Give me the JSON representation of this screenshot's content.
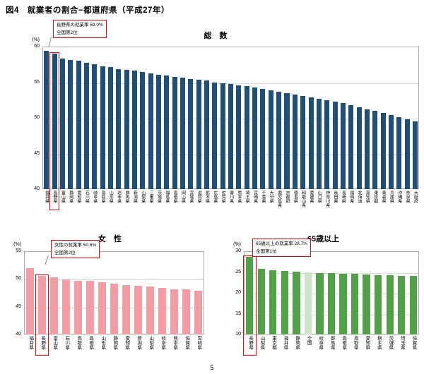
{
  "page": {
    "figure_title": "図4　就業者の割合−都道府県（平成27年）",
    "page_number": "5"
  },
  "colors": {
    "total_bar": "#1F4E79",
    "female_bar": "#F39CA4",
    "elderly_bar": "#52A047",
    "national_bar": "#CFE6C4",
    "highlight": "#FF0000",
    "grid": "#D9D9D9",
    "plot_border": "#A8A8A8"
  },
  "chart_data": [
    {
      "id": "total",
      "type": "bar",
      "title": "総　数",
      "unit": "(%)",
      "bar_color": "#1F4E79",
      "ylim": [
        40,
        60
      ],
      "yticks": [
        40,
        45,
        50,
        55,
        60
      ],
      "grid": true,
      "annotation": {
        "line1": "長野県の就業率  59.0%",
        "line2": "全国第2位"
      },
      "highlight_category": "長野県",
      "categories": [
        "福井県",
        "長野県",
        "富山県",
        "静岡県",
        "愛知県",
        "石川県",
        "岐阜県",
        "鳥取県",
        "山形県",
        "岩手県",
        "群馬県",
        "新潟県",
        "山梨県",
        "三重県",
        "茨城県",
        "福島県",
        "島根県",
        "岡山県",
        "宮城県",
        "滋賀県",
        "栃木県",
        "広島県",
        "佐賀県",
        "香川県",
        "熊本県",
        "埼玉県",
        "宮崎県",
        "千葉県",
        "大分県",
        "鹿児島県",
        "京都府",
        "徳島県",
        "和歌山県",
        "愛媛県",
        "山口県",
        "神奈川県",
        "秋田県",
        "長崎県",
        "福岡県",
        "北海道",
        "高知県",
        "東京都",
        "青森県",
        "兵庫県",
        "沖縄県",
        "奈良県",
        "大阪府"
      ],
      "values": [
        59.4,
        59.0,
        58.3,
        58.1,
        58.0,
        57.7,
        57.5,
        57.2,
        57.1,
        56.8,
        56.7,
        56.6,
        56.4,
        56.2,
        56.0,
        55.9,
        55.7,
        55.6,
        55.4,
        55.3,
        55.2,
        55.0,
        54.9,
        54.8,
        54.6,
        54.5,
        54.3,
        54.1,
        53.9,
        53.7,
        53.5,
        53.3,
        53.1,
        52.9,
        52.7,
        52.5,
        52.3,
        52.1,
        51.8,
        51.5,
        51.2,
        51.0,
        50.7,
        50.4,
        50.1,
        49.8,
        49.5
      ]
    },
    {
      "id": "female",
      "type": "bar",
      "title": "女　性",
      "unit": "(%)",
      "bar_color": "#F39CA4",
      "ylim": [
        40,
        55
      ],
      "yticks": [
        40,
        45,
        50,
        55
      ],
      "grid": true,
      "annotation": {
        "line1": "女性の就業率  50.6%",
        "line2": "全国第2位"
      },
      "highlight_category": "長野県",
      "categories": [
        "福井県",
        "長野県",
        "富山県",
        "石川県",
        "鳥取県",
        "島根県",
        "山形県",
        "静岡県",
        "愛知県",
        "新潟県",
        "山梨県",
        "岐阜県",
        "熊本県",
        "佐賀県",
        "宮崎県"
      ],
      "values": [
        51.9,
        50.6,
        50.3,
        49.9,
        49.7,
        49.6,
        49.4,
        49.2,
        48.9,
        48.8,
        48.6,
        48.4,
        48.2,
        48.1,
        47.9
      ]
    },
    {
      "id": "elderly",
      "type": "bar",
      "title": "65歳以上",
      "unit": "(%)",
      "bar_color": "#52A047",
      "national_category": "全国",
      "national_bar_color": "#CFE6C4",
      "ylim": [
        10,
        30
      ],
      "yticks": [
        10,
        15,
        20,
        25,
        30
      ],
      "grid": true,
      "annotation": {
        "line1": "65歳以上の就業率  28.7%",
        "line2": "全国第1位"
      },
      "highlight_category": "長野県",
      "categories": [
        "長野県",
        "山梨県",
        "東京都",
        "福井県",
        "静岡県",
        "全国",
        "岐阜県",
        "群馬県",
        "島根県",
        "鳥取県",
        "愛知県",
        "栃木県",
        "茨城県",
        "埼玉県",
        "佐賀県"
      ],
      "values": [
        28.7,
        25.8,
        25.5,
        25.3,
        25.1,
        24.9,
        24.8,
        24.7,
        24.6,
        24.5,
        24.4,
        24.3,
        24.2,
        24.1,
        24.0
      ]
    }
  ]
}
